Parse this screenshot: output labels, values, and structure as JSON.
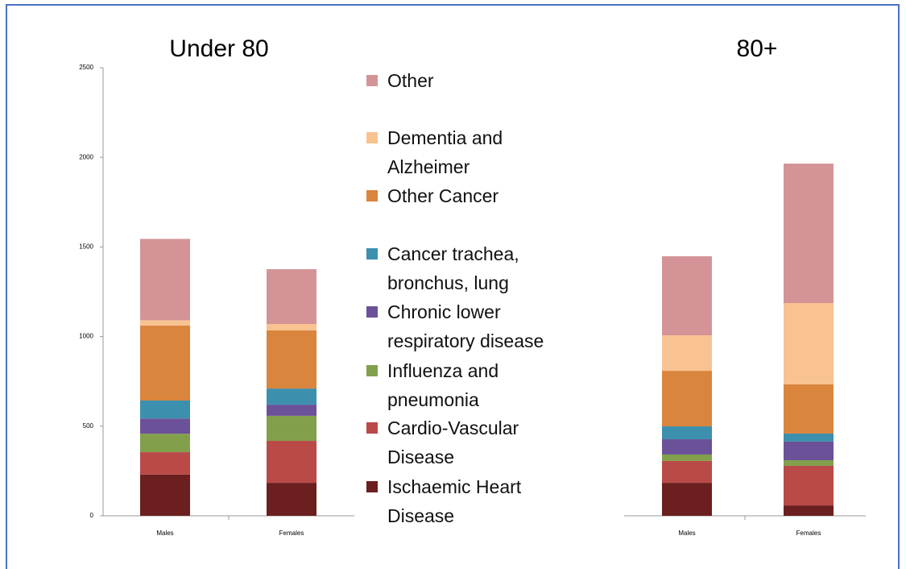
{
  "chart_data": {
    "type": "stacked_bar",
    "series": [
      {
        "name": "Ischaemic Heart Disease",
        "color": "#6b1f1f"
      },
      {
        "name": "Cardio-Vascular Disease",
        "color": "#b94a48"
      },
      {
        "name": "Influenza and pneumonia",
        "color": "#82a04c"
      },
      {
        "name": "Chronic lower respiratory disease",
        "color": "#6b5198"
      },
      {
        "name": "Cancer trachea, bronchus, lung",
        "color": "#3c90ae"
      },
      {
        "name": "Other Cancer",
        "color": "#d9853e"
      },
      {
        "name": "Dementia and Alzheimer",
        "color": "#f9c291"
      },
      {
        "name": "Other",
        "color": "#d49497"
      }
    ],
    "panels": [
      {
        "title": "Under 80",
        "categories": [
          "Males",
          "Females"
        ],
        "values": [
          [
            230,
            184
          ],
          [
            125,
            234
          ],
          [
            103,
            140
          ],
          [
            85,
            62
          ],
          [
            100,
            90
          ],
          [
            418,
            325
          ],
          [
            30,
            35
          ],
          [
            454,
            306
          ]
        ],
        "ylim": [
          0,
          2500
        ],
        "yticks": [
          0,
          500,
          1000,
          1500,
          2000,
          2500
        ]
      },
      {
        "title": "80+",
        "categories": [
          "Males",
          "Females"
        ],
        "values": [
          [
            184,
            58
          ],
          [
            122,
            221
          ],
          [
            36,
            31
          ],
          [
            85,
            104
          ],
          [
            72,
            45
          ],
          [
            310,
            274
          ],
          [
            198,
            454
          ],
          [
            441,
            778
          ]
        ],
        "ylim": [
          0,
          2500
        ]
      }
    ]
  }
}
